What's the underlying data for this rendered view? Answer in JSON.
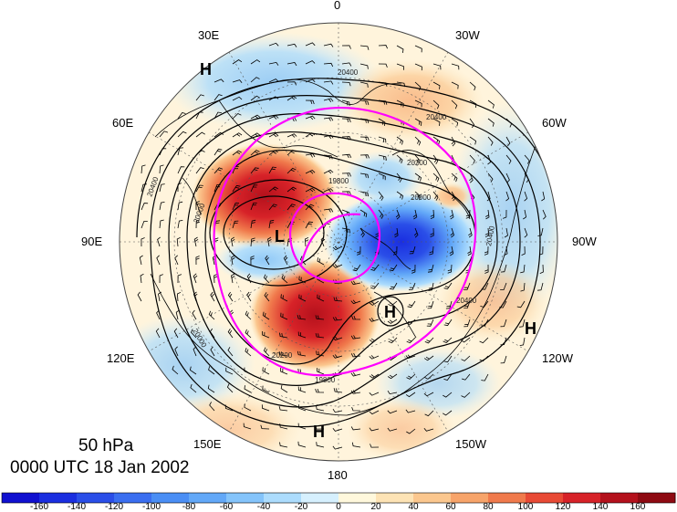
{
  "map": {
    "level": "50 hPa",
    "time": "0000 UTC 18 Jan 2002",
    "projection": "north-polar-stereographic",
    "longitude_labels": {
      "top": "0",
      "top_left": "30E",
      "top_right": "30W",
      "upper_left": "60E",
      "upper_right": "60W",
      "left": "90E",
      "right": "90W",
      "lower_left": "120E",
      "lower_right": "120W",
      "bottom_left": "150E",
      "bottom_right": "150W",
      "bottom": "180"
    },
    "pressure_centers": [
      {
        "label": "H",
        "where": "north-of-30E"
      },
      {
        "label": "L",
        "where": "near-pole-90E"
      },
      {
        "label": "H",
        "where": "near-120W"
      },
      {
        "label": "H",
        "where": "outer-120W"
      },
      {
        "label": "H",
        "where": "near-180"
      }
    ],
    "contour_labels": [
      "20400",
      "20400",
      "20200",
      "20000",
      "19800",
      "20400",
      "20400",
      "20000",
      "19800",
      "20200",
      "20000",
      "20400"
    ],
    "colors": {
      "highlight_contour": "#ff00ff",
      "land_outline": "#000000"
    }
  },
  "colorbar": {
    "ticks": [
      "-160",
      "-140",
      "-120",
      "-100",
      "-80",
      "-60",
      "-40",
      "-20",
      "0",
      "20",
      "40",
      "60",
      "80",
      "100",
      "120",
      "140",
      "160"
    ],
    "colors": [
      "#1010d0",
      "#1a2ee0",
      "#2a4ee8",
      "#3a6ef0",
      "#4a8ef5",
      "#62a8f8",
      "#84c4fb",
      "#acdcfd",
      "#d6f0fe",
      "#fff8dc",
      "#fde3b5",
      "#fbc78e",
      "#f7a46a",
      "#f07a4c",
      "#e84a35",
      "#d72228",
      "#b4111c",
      "#8e0a12"
    ]
  }
}
